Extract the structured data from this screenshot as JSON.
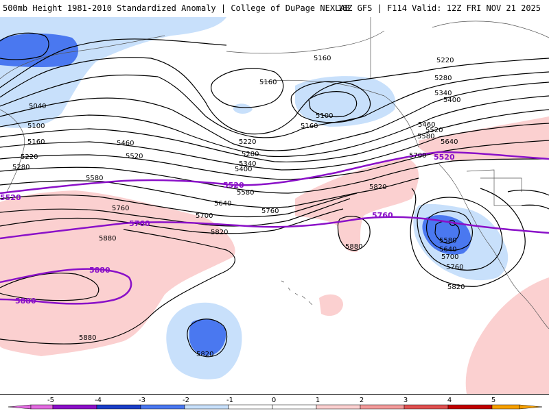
{
  "header": {
    "title": "500mb Height 1981-2010 Standardized Anomaly | College of DuPage NEXLAB",
    "run_info": "18Z GFS | F114 Valid: 12Z FRI NOV 21 2025"
  },
  "colors": {
    "neg5": "#e26be0",
    "neg4": "#8a10c8",
    "neg3": "#1a3ec8",
    "neg2": "#4a78f0",
    "neg1": "#c8e0fb",
    "pos1": "#fbd0d0",
    "pos2": "#f39a9a",
    "pos3": "#e05050",
    "pos4": "#c00000",
    "pos5": "#f7a000",
    "highlight_contour": "#8a10c8"
  },
  "contour_labels": {
    "black": [
      "5040",
      "5100",
      "5160",
      "5220",
      "5280",
      "5160",
      "5220",
      "5280",
      "5340",
      "5400",
      "5160",
      "5100",
      "5160",
      "5460",
      "5520",
      "5580",
      "5580",
      "5640",
      "5700",
      "5760",
      "5820",
      "5760",
      "5880",
      "5820",
      "5880",
      "5880",
      "5820",
      "5220",
      "5280",
      "5340",
      "5400",
      "5460",
      "5520",
      "5580",
      "5640",
      "5700",
      "5580",
      "5640",
      "5700",
      "5760",
      "5820"
    ],
    "highlight": [
      "5520",
      "5520",
      "5520",
      "5760",
      "5760",
      "5880",
      "5880"
    ]
  },
  "colorbar": {
    "labels": [
      "-5",
      "-4",
      "-3",
      "-2",
      "-1",
      "0",
      "1",
      "2",
      "3",
      "4",
      "5"
    ]
  }
}
